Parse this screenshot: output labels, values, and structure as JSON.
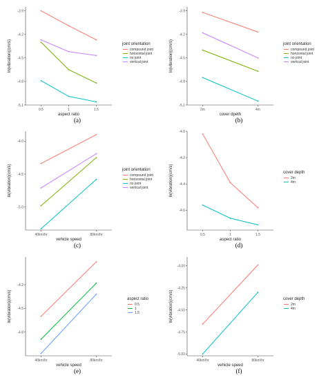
{
  "colors": {
    "red": "#F8766D",
    "green": "#7CAE00",
    "cyan": "#00BFC4",
    "purple": "#C77CFF"
  },
  "chart_data": [
    {
      "panel": "(a)",
      "type": "line",
      "xlabel": "aspect ratio",
      "ylabel": "ln(vibration)(cm/s)",
      "categories": [
        "0.5",
        "1",
        "1.5"
      ],
      "ylim": [
        -5.1,
        -3.85
      ],
      "yticks": [
        -3.9,
        -4.2,
        -4.5,
        -4.8,
        -5.1
      ],
      "yticklabels": [
        "-3.9",
        "-4.2",
        "-4.5",
        "-4.8",
        "-5.1"
      ],
      "legend_title": "joint  orientation",
      "series": [
        {
          "name": "compound joint",
          "color": "#F8766D",
          "values": [
            -3.9,
            -4.09,
            -4.27
          ]
        },
        {
          "name": "horizontal joint",
          "color": "#7CAE00",
          "values": [
            -4.3,
            -4.65,
            -4.82
          ]
        },
        {
          "name": "no joint",
          "color": "#00BFC4",
          "values": [
            -4.79,
            -4.99,
            -5.06
          ]
        },
        {
          "name": "vertical joint",
          "color": "#C77CFF",
          "values": [
            -4.27,
            -4.42,
            -4.47
          ]
        }
      ]
    },
    {
      "panel": "(b)",
      "type": "line",
      "xlabel": "cover dpeth",
      "ylabel": "ln(vibration)(cm/s)",
      "categories": [
        "2m",
        "4m"
      ],
      "ylim": [
        -5.1,
        -3.85
      ],
      "yticks": [
        -3.9,
        -4.2,
        -4.5,
        -4.8,
        -5.1
      ],
      "yticklabels": [
        "-3.9",
        "-4.2",
        "-4.5",
        "-4.8",
        "-5.1"
      ],
      "legend_title": "joint  orientation",
      "series": [
        {
          "name": "compound joint",
          "color": "#F8766D",
          "values": [
            -3.92,
            -4.17
          ]
        },
        {
          "name": "horizontal joint",
          "color": "#7CAE00",
          "values": [
            -4.4,
            -4.67
          ]
        },
        {
          "name": "no joint",
          "color": "#00BFC4",
          "values": [
            -4.75,
            -5.05
          ]
        },
        {
          "name": "vertical joint",
          "color": "#C77CFF",
          "values": [
            -4.18,
            -4.5
          ]
        }
      ]
    },
    {
      "panel": "(c)",
      "type": "line",
      "xlabel": "vehicle speed",
      "ylabel": "ln(vibration)(cm/s)",
      "categories": [
        "40km/hr",
        "80km/hr"
      ],
      "ylim": [
        -5.35,
        -3.85
      ],
      "yticks": [
        -4.0,
        -4.5,
        -5.0
      ],
      "yticklabels": [
        "-4.0",
        "-4.5",
        "-5.0"
      ],
      "legend_title": "joint  orientation",
      "series": [
        {
          "name": "compound joint",
          "color": "#F8766D",
          "values": [
            -4.34,
            -3.9
          ]
        },
        {
          "name": "horizontal joint",
          "color": "#7CAE00",
          "values": [
            -4.98,
            -4.25
          ]
        },
        {
          "name": "no joint",
          "color": "#00BFC4",
          "values": [
            -5.33,
            -4.58
          ]
        },
        {
          "name": "vertical joint",
          "color": "#C77CFF",
          "values": [
            -4.71,
            -4.19
          ]
        }
      ]
    },
    {
      "panel": "(d)",
      "type": "line",
      "xlabel": "aspect ratio",
      "ylabel": "ln(vibration)(cm/s)",
      "categories": [
        "0.5",
        "1",
        "1.5"
      ],
      "ylim": [
        -4.75,
        -4.0
      ],
      "yticks": [
        -4.0,
        -4.2,
        -4.4,
        -4.6
      ],
      "yticklabels": [
        "-4.0",
        "-4.2",
        "-4.4",
        "-4.6"
      ],
      "legend_title": "cover  depth",
      "series": [
        {
          "name": "2m",
          "color": "#F8766D",
          "values": [
            -4.02,
            -4.39,
            -4.58
          ]
        },
        {
          "name": "4m",
          "color": "#00BFC4",
          "values": [
            -4.56,
            -4.66,
            -4.71
          ]
        }
      ]
    },
    {
      "panel": "(e)",
      "type": "line",
      "xlabel": "vehicle speed",
      "ylabel": "ln(vibration)(cm/s)",
      "categories": [
        "40km/hr",
        "80km/hr"
      ],
      "ylim": [
        -5.1,
        -3.85
      ],
      "yticks": [
        -4.2,
        -4.5,
        -4.8
      ],
      "yticklabels": [
        "-4.2",
        "-4.5",
        "-4.8"
      ],
      "legend_title": "aspect  ratio",
      "series": [
        {
          "name": "0.5",
          "color": "#F8766D",
          "values": [
            -4.6,
            -3.91
          ]
        },
        {
          "name": "1",
          "color": "#00BA38",
          "values": [
            -4.89,
            -4.18
          ]
        },
        {
          "name": "1.5",
          "color": "#619CFF",
          "values": [
            -5.07,
            -4.32
          ]
        }
      ]
    },
    {
      "panel": "(f)",
      "type": "line",
      "xlabel": "vehicle speed",
      "ylabel": "ln(vibration)(cm/s)",
      "categories": [
        "40km/hr",
        "80km/hr"
      ],
      "ylim": [
        -5.02,
        -3.9
      ],
      "yticks": [
        -4.0,
        -4.25,
        -4.5,
        -4.75,
        -5.0
      ],
      "yticklabels": [
        "-4.00",
        "-4.25",
        "-4.50",
        "-4.75",
        "-5.00"
      ],
      "legend_title": "cover  depth",
      "series": [
        {
          "name": "2m",
          "color": "#F8766D",
          "values": [
            -4.66,
            -3.99
          ]
        },
        {
          "name": "4m",
          "color": "#00BFC4",
          "values": [
            -5.0,
            -4.3
          ]
        }
      ]
    }
  ]
}
